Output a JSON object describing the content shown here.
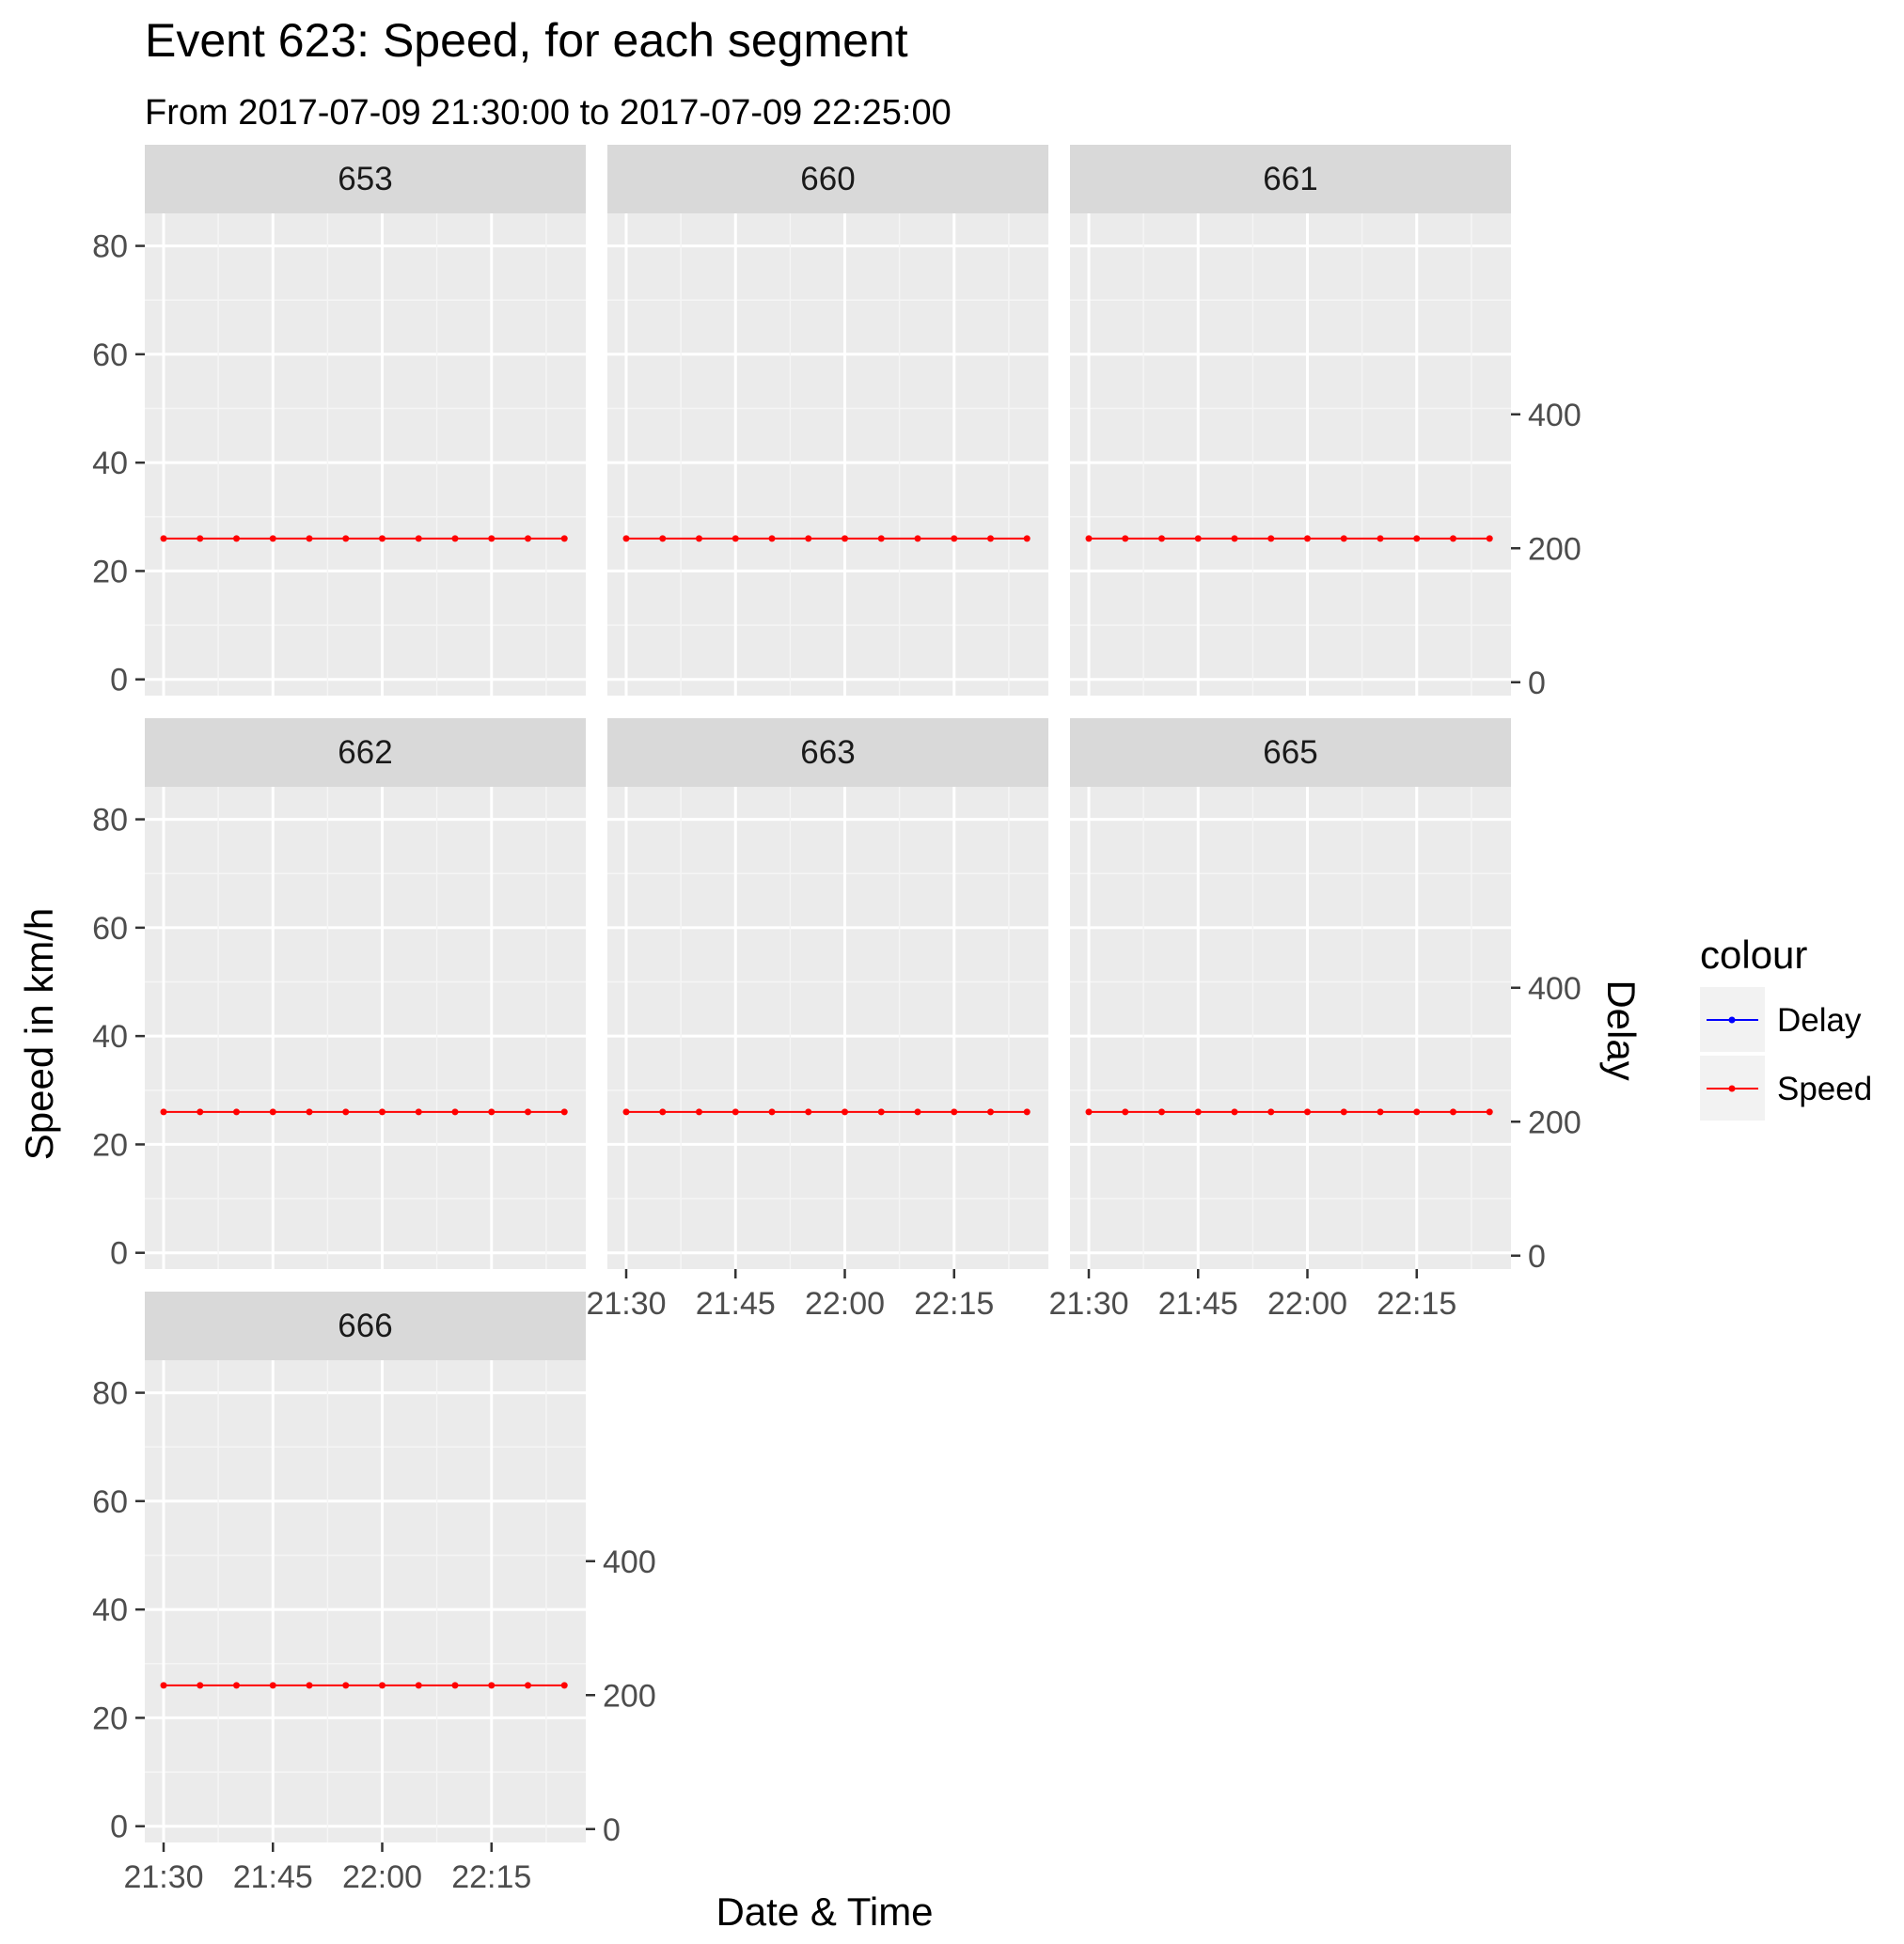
{
  "chart_data": {
    "type": "line",
    "title": "Event 623: Speed, for each segment",
    "subtitle": "From 2017-07-09 21:30:00 to 2017-07-09 22:25:00",
    "xlabel": "Date & Time",
    "ylabel": "Speed in km/h",
    "y2label": "Delay",
    "x": [
      "21:30",
      "21:35",
      "21:40",
      "21:45",
      "21:50",
      "21:55",
      "22:00",
      "22:05",
      "22:10",
      "22:15",
      "22:20",
      "22:25"
    ],
    "x_ticks": [
      "21:30",
      "21:45",
      "22:00",
      "22:15"
    ],
    "ylim": [
      -3,
      86
    ],
    "y_ticks": [
      0,
      20,
      40,
      60,
      80
    ],
    "y2_ticks": [
      0,
      200,
      400
    ],
    "y2lim": [
      -20,
      700
    ],
    "grid": true,
    "legend": {
      "title": "colour",
      "position": "right",
      "entries": [
        {
          "name": "Delay",
          "color": "#0000ff"
        },
        {
          "name": "Speed",
          "color": "#ff0000"
        }
      ]
    },
    "panels": [
      {
        "segment": "653",
        "series": [
          {
            "name": "Speed",
            "values": [
              26,
              26,
              26,
              26,
              26,
              26,
              26,
              26,
              26,
              26,
              26,
              26
            ]
          }
        ]
      },
      {
        "segment": "660",
        "series": [
          {
            "name": "Speed",
            "values": [
              26,
              26,
              26,
              26,
              26,
              26,
              26,
              26,
              26,
              26,
              26,
              26
            ]
          }
        ]
      },
      {
        "segment": "661",
        "series": [
          {
            "name": "Speed",
            "values": [
              26,
              26,
              26,
              26,
              26,
              26,
              26,
              26,
              26,
              26,
              26,
              26
            ]
          }
        ]
      },
      {
        "segment": "662",
        "series": [
          {
            "name": "Speed",
            "values": [
              26,
              26,
              26,
              26,
              26,
              26,
              26,
              26,
              26,
              26,
              26,
              26
            ]
          }
        ]
      },
      {
        "segment": "663",
        "series": [
          {
            "name": "Speed",
            "values": [
              26,
              26,
              26,
              26,
              26,
              26,
              26,
              26,
              26,
              26,
              26,
              26
            ]
          }
        ]
      },
      {
        "segment": "665",
        "series": [
          {
            "name": "Speed",
            "values": [
              26,
              26,
              26,
              26,
              26,
              26,
              26,
              26,
              26,
              26,
              26,
              26
            ]
          }
        ]
      },
      {
        "segment": "666",
        "series": [
          {
            "name": "Speed",
            "values": [
              26,
              26,
              26,
              26,
              26,
              26,
              26,
              26,
              26,
              26,
              26,
              26
            ]
          }
        ]
      }
    ]
  }
}
